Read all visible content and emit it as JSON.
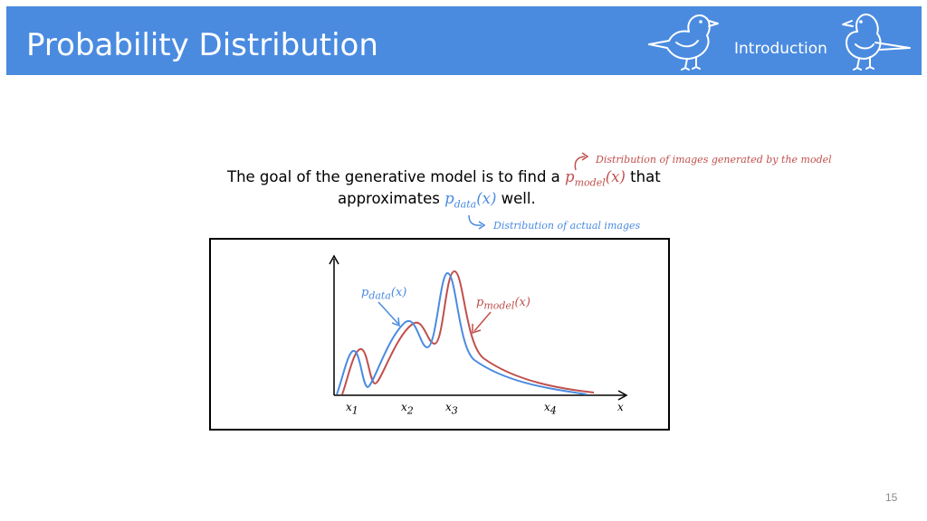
{
  "header": {
    "title": "Probability Distribution",
    "section": "Introduction",
    "color": "#4a8be0"
  },
  "statement": {
    "line1_prefix": "The goal of the generative model is to find a ",
    "p_model_base": "p",
    "p_model_sub": "model",
    "arg": "(x)",
    "line1_suffix": " that",
    "line2_prefix": "approximates ",
    "p_data_base": "p",
    "p_data_sub": "data",
    "line2_suffix": " well."
  },
  "annotations": {
    "model": "Distribution of images generated by the model",
    "data": "Distribution of actual images"
  },
  "figure": {
    "data_label_base": "p",
    "data_label_sub": "data",
    "data_label_arg": "(x)",
    "model_label_base": "p",
    "model_label_sub": "model",
    "model_label_arg": "(x)",
    "x_ticks": [
      {
        "base": "x",
        "sub": "1"
      },
      {
        "base": "x",
        "sub": "2"
      },
      {
        "base": "x",
        "sub": "3"
      },
      {
        "base": "x",
        "sub": "4"
      }
    ],
    "x_axis_label": "x",
    "colors": {
      "data": "#4a8be0",
      "model": "#c0504d"
    }
  },
  "page_number": "15"
}
